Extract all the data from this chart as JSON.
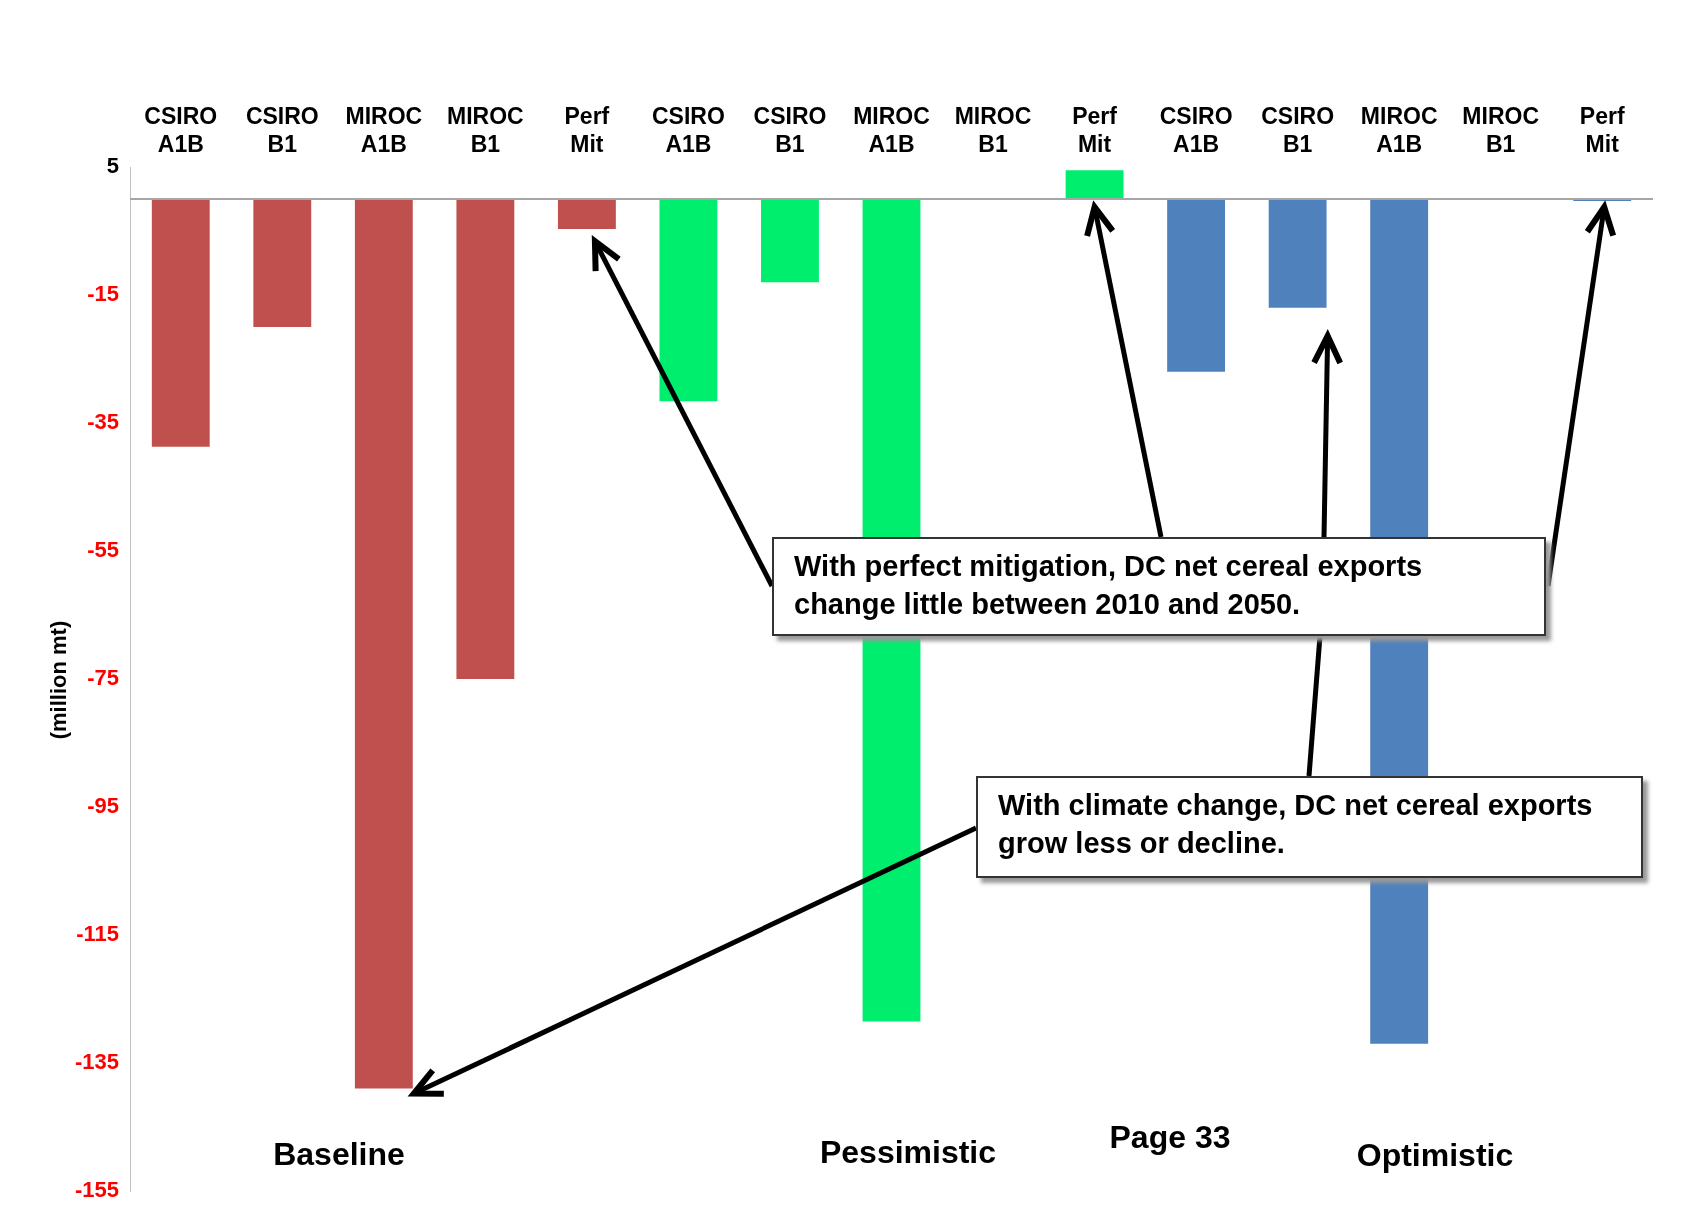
{
  "chart_data": {
    "type": "bar",
    "ylabel": "(million mt)",
    "categories": [
      "CSIRO A1B",
      "CSIRO B1",
      "MIROC A1B",
      "MIROC B1",
      "Perf Mit",
      "CSIRO A1B",
      "CSIRO B1",
      "MIROC A1B",
      "MIROC B1",
      "Perf Mit",
      "CSIRO A1B",
      "CSIRO B1",
      "MIROC A1B",
      "MIROC B1",
      "Perf Mit"
    ],
    "values": [
      -38.7,
      -20,
      -139,
      -75,
      -4.7,
      -31.6,
      -13,
      -128.5,
      null,
      4.5,
      -27,
      -17,
      -132,
      null,
      -0.3
    ],
    "colors": [
      "#c0504d",
      "#c0504d",
      "#c0504d",
      "#c0504d",
      "#c0504d",
      "#00ee6e",
      "#00ee6e",
      "#00ee6e",
      "#00ee6e",
      "#00ee6e",
      "#4f81bd",
      "#4f81bd",
      "#4f81bd",
      "#4f81bd",
      "#4f81bd"
    ],
    "ylim": [
      -155,
      5
    ],
    "yticks": [
      5,
      -15,
      -35,
      -55,
      -75,
      -95,
      -115,
      -135,
      -155
    ],
    "annotations": [
      "With perfect mitigation, DC net cereal exports change little between 2010 and 2050.",
      "With climate change, DC net cereal exports grow less or decline.",
      "Baseline",
      "Pessimistic",
      "Page 33",
      "Optimistic"
    ],
    "grid": false,
    "legend": false
  }
}
